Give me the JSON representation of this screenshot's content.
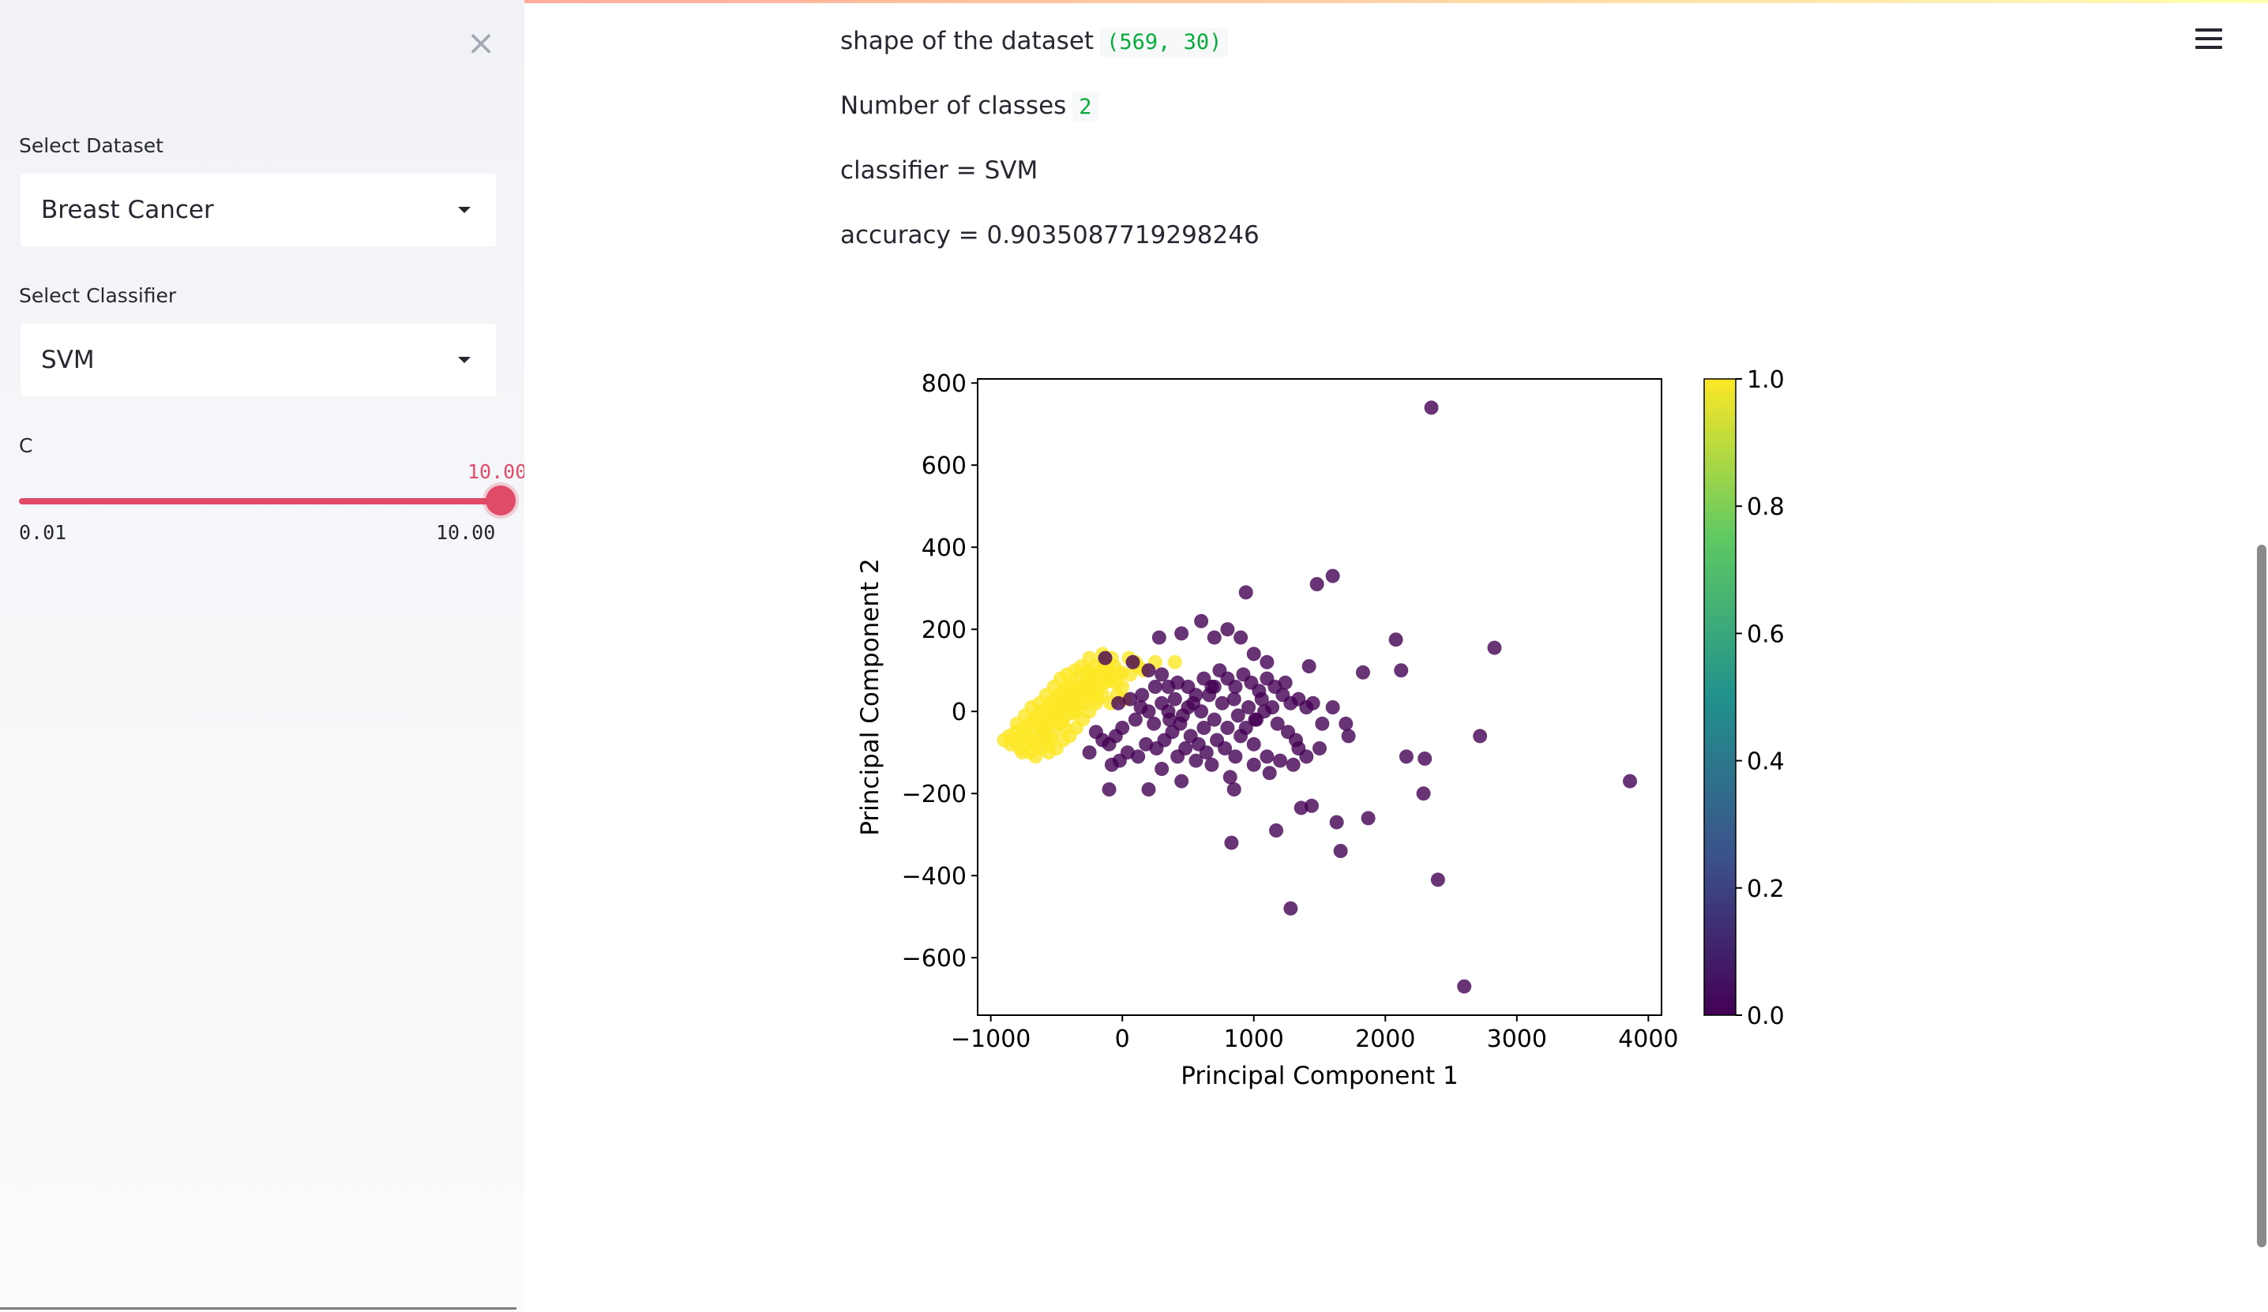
{
  "sidebar": {
    "close_icon": "close-icon",
    "dataset": {
      "label": "Select Dataset",
      "value": "Breast Cancer"
    },
    "classifier": {
      "label": "Select Classifier",
      "value": "SVM"
    },
    "slider": {
      "label": "C",
      "value": "10.00",
      "min": "0.01",
      "max": "10.00",
      "fraction": 1.0
    }
  },
  "header": {
    "menu_icon": "hamburger-menu-icon"
  },
  "main": {
    "shape_label": "shape of the dataset",
    "shape_value": "(569, 30)",
    "classes_label": "Number of classes",
    "classes_value": "2",
    "classifier_text": "classifier = SVM",
    "accuracy_text": "accuracy = 0.9035087719298246"
  },
  "chart_data": {
    "type": "scatter",
    "xlabel": "Principal Component 1",
    "ylabel": "Principal Component 2",
    "xlim": [
      -1100,
      4100
    ],
    "ylim": [
      -740,
      810
    ],
    "xticks": [
      "−1000",
      "0",
      "1000",
      "2000",
      "3000",
      "4000"
    ],
    "xtick_values": [
      -1000,
      0,
      1000,
      2000,
      3000,
      4000
    ],
    "yticks": [
      "800",
      "600",
      "400",
      "200",
      "0",
      "−200",
      "−400",
      "−600"
    ],
    "ytick_values": [
      800,
      600,
      400,
      200,
      0,
      -200,
      -400,
      -600
    ],
    "colorbar": {
      "ticks": [
        "1.0",
        "0.8",
        "0.6",
        "0.4",
        "0.2",
        "0.0"
      ],
      "colormap": "viridis",
      "low": "#440154",
      "high": "#fde725"
    },
    "series": [
      {
        "color": "#fde725",
        "points": [
          [
            -850,
            -80
          ],
          [
            -820,
            -70
          ],
          [
            -780,
            -90
          ],
          [
            -760,
            -60
          ],
          [
            -740,
            -40
          ],
          [
            -720,
            -80
          ],
          [
            -700,
            -30
          ],
          [
            -690,
            -70
          ],
          [
            -670,
            -20
          ],
          [
            -650,
            -50
          ],
          [
            -640,
            -10
          ],
          [
            -620,
            -60
          ],
          [
            -600,
            0
          ],
          [
            -590,
            -40
          ],
          [
            -570,
            10
          ],
          [
            -560,
            -30
          ],
          [
            -540,
            20
          ],
          [
            -530,
            -20
          ],
          [
            -510,
            30
          ],
          [
            -500,
            -10
          ],
          [
            -480,
            40
          ],
          [
            -470,
            0
          ],
          [
            -450,
            50
          ],
          [
            -440,
            10
          ],
          [
            -420,
            60
          ],
          [
            -410,
            20
          ],
          [
            -390,
            30
          ],
          [
            -380,
            70
          ],
          [
            -360,
            40
          ],
          [
            -350,
            0
          ],
          [
            -330,
            50
          ],
          [
            -320,
            90
          ],
          [
            -300,
            60
          ],
          [
            -290,
            20
          ],
          [
            -270,
            70
          ],
          [
            -260,
            100
          ],
          [
            -240,
            80
          ],
          [
            -230,
            40
          ],
          [
            -210,
            90
          ],
          [
            -200,
            110
          ],
          [
            -180,
            60
          ],
          [
            -160,
            100
          ],
          [
            -140,
            120
          ],
          [
            -110,
            80
          ],
          [
            -80,
            130
          ],
          [
            -50,
            70
          ],
          [
            50,
            130
          ],
          [
            120,
            110
          ],
          [
            250,
            120
          ],
          [
            400,
            120
          ],
          [
            -620,
            -90
          ],
          [
            -580,
            -70
          ],
          [
            -530,
            -50
          ],
          [
            -480,
            -30
          ],
          [
            -430,
            -10
          ],
          [
            -380,
            10
          ],
          [
            -330,
            20
          ],
          [
            -280,
            40
          ],
          [
            -230,
            60
          ],
          [
            -700,
            -100
          ],
          [
            -560,
            -80
          ],
          [
            -440,
            -40
          ],
          [
            -560,
            -100
          ],
          [
            -760,
            -100
          ],
          [
            -810,
            -50
          ],
          [
            -740,
            -10
          ],
          [
            -690,
            10
          ],
          [
            -630,
            20
          ],
          [
            -580,
            40
          ],
          [
            -520,
            60
          ],
          [
            -470,
            80
          ],
          [
            -420,
            90
          ],
          [
            -360,
            100
          ],
          [
            -310,
            110
          ],
          [
            -250,
            130
          ],
          [
            -150,
            140
          ],
          [
            -100,
            100
          ],
          [
            -40,
            40
          ],
          [
            -20,
            90
          ],
          [
            0,
            60
          ],
          [
            20,
            30
          ],
          [
            -90,
            20
          ],
          [
            -150,
            40
          ],
          [
            -200,
            20
          ],
          [
            -250,
            0
          ],
          [
            -300,
            -20
          ],
          [
            -350,
            -40
          ],
          [
            -400,
            -60
          ],
          [
            -450,
            -70
          ],
          [
            -500,
            -90
          ],
          [
            -660,
            -110
          ],
          [
            -860,
            -60
          ],
          [
            -800,
            -30
          ],
          [
            -900,
            -70
          ],
          [
            -610,
            -40
          ],
          [
            -510,
            0
          ],
          [
            -460,
            20
          ],
          [
            -410,
            40
          ],
          [
            -360,
            60
          ],
          [
            -270,
            90
          ],
          [
            -190,
            30
          ],
          [
            -130,
            70
          ],
          [
            -60,
            110
          ],
          [
            60,
            90
          ],
          [
            100,
            120
          ],
          [
            160,
            100
          ],
          [
            -650,
            -80
          ],
          [
            -545,
            -65
          ],
          [
            -455,
            -25
          ],
          [
            -365,
            -5
          ],
          [
            -275,
            35
          ],
          [
            -185,
            55
          ],
          [
            -95,
            75
          ],
          [
            -5,
            95
          ],
          [
            -720,
            -60
          ],
          [
            -600,
            -20
          ],
          [
            -490,
            10
          ],
          [
            -395,
            35
          ],
          [
            -300,
            55
          ],
          [
            -215,
            85
          ],
          [
            -120,
            95
          ]
        ]
      },
      {
        "color": "#440154",
        "points": [
          [
            2350,
            740
          ],
          [
            1600,
            330
          ],
          [
            1480,
            310
          ],
          [
            940,
            290
          ],
          [
            2080,
            175
          ],
          [
            2830,
            155
          ],
          [
            280,
            180
          ],
          [
            450,
            190
          ],
          [
            600,
            220
          ],
          [
            700,
            180
          ],
          [
            800,
            200
          ],
          [
            900,
            180
          ],
          [
            2120,
            100
          ],
          [
            1830,
            95
          ],
          [
            1420,
            110
          ],
          [
            1100,
            120
          ],
          [
            1000,
            140
          ],
          [
            -130,
            130
          ],
          [
            80,
            120
          ],
          [
            200,
            100
          ],
          [
            300,
            90
          ],
          [
            350,
            60
          ],
          [
            420,
            70
          ],
          [
            500,
            60
          ],
          [
            560,
            40
          ],
          [
            620,
            80
          ],
          [
            680,
            60
          ],
          [
            740,
            100
          ],
          [
            800,
            80
          ],
          [
            860,
            60
          ],
          [
            920,
            90
          ],
          [
            980,
            70
          ],
          [
            1040,
            50
          ],
          [
            1100,
            80
          ],
          [
            1160,
            60
          ],
          [
            1220,
            40
          ],
          [
            1280,
            20
          ],
          [
            1340,
            30
          ],
          [
            1400,
            10
          ],
          [
            1450,
            20
          ],
          [
            1600,
            10
          ],
          [
            1700,
            -30
          ],
          [
            1720,
            -60
          ],
          [
            2720,
            -60
          ],
          [
            3860,
            -170
          ],
          [
            2160,
            -110
          ],
          [
            2300,
            -115
          ],
          [
            2290,
            -200
          ],
          [
            1440,
            -230
          ],
          [
            1360,
            -235
          ],
          [
            1630,
            -270
          ],
          [
            1870,
            -260
          ],
          [
            1170,
            -290
          ],
          [
            830,
            -320
          ],
          [
            1660,
            -340
          ],
          [
            2400,
            -410
          ],
          [
            1280,
            -480
          ],
          [
            2600,
            -670
          ],
          [
            -100,
            -190
          ],
          [
            200,
            -190
          ],
          [
            450,
            -170
          ],
          [
            820,
            -160
          ],
          [
            850,
            -190
          ],
          [
            1000,
            -130
          ],
          [
            1100,
            -110
          ],
          [
            1200,
            -120
          ],
          [
            1300,
            -130
          ],
          [
            1400,
            -110
          ],
          [
            1500,
            -90
          ],
          [
            1000,
            -80
          ],
          [
            900,
            -60
          ],
          [
            800,
            -40
          ],
          [
            700,
            -20
          ],
          [
            600,
            0
          ],
          [
            500,
            10
          ],
          [
            400,
            30
          ],
          [
            300,
            20
          ],
          [
            200,
            0
          ],
          [
            100,
            -20
          ],
          [
            0,
            -40
          ],
          [
            -50,
            -60
          ],
          [
            -100,
            -80
          ],
          [
            -150,
            -70
          ],
          [
            -200,
            -50
          ],
          [
            -250,
            -100
          ],
          [
            -80,
            -130
          ],
          [
            -20,
            -120
          ],
          [
            40,
            -100
          ],
          [
            120,
            -110
          ],
          [
            180,
            -80
          ],
          [
            260,
            -90
          ],
          [
            320,
            -70
          ],
          [
            380,
            -50
          ],
          [
            440,
            -30
          ],
          [
            520,
            -60
          ],
          [
            580,
            -80
          ],
          [
            640,
            -100
          ],
          [
            720,
            -70
          ],
          [
            780,
            -90
          ],
          [
            860,
            -110
          ],
          [
            940,
            -40
          ],
          [
            1020,
            -20
          ],
          [
            1080,
            0
          ],
          [
            1140,
            10
          ],
          [
            1260,
            -50
          ],
          [
            1320,
            -70
          ],
          [
            1180,
            -30
          ],
          [
            1060,
            30
          ],
          [
            960,
            10
          ],
          [
            880,
            -10
          ],
          [
            760,
            20
          ],
          [
            660,
            40
          ],
          [
            540,
            20
          ],
          [
            460,
            -10
          ],
          [
            360,
            -20
          ],
          [
            240,
            -30
          ],
          [
            140,
            10
          ],
          [
            60,
            30
          ],
          [
            -30,
            20
          ],
          [
            150,
            40
          ],
          [
            250,
            60
          ],
          [
            350,
            0
          ],
          [
            480,
            -90
          ],
          [
            620,
            -40
          ],
          [
            700,
            60
          ],
          [
            850,
            30
          ],
          [
            1010,
            -20
          ],
          [
            1240,
            70
          ],
          [
            1340,
            -90
          ],
          [
            1520,
            -30
          ],
          [
            1120,
            -150
          ],
          [
            680,
            -130
          ],
          [
            420,
            -110
          ],
          [
            300,
            -140
          ],
          [
            560,
            -120
          ]
        ]
      }
    ]
  }
}
